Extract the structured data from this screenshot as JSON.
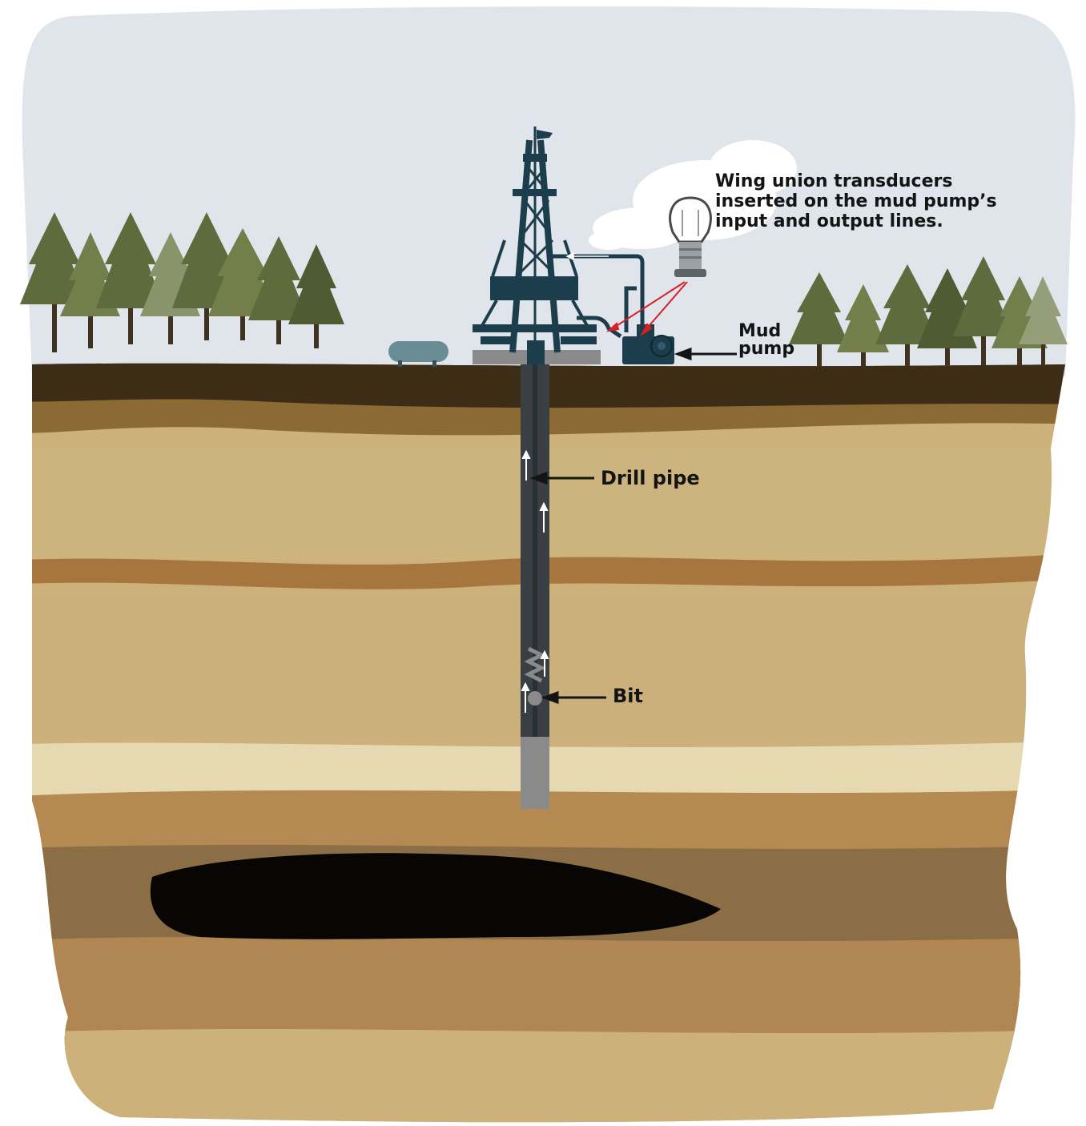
{
  "labels": {
    "transducer_line1": "Wing union transducers",
    "transducer_line2": "inserted on the mud pump’s",
    "transducer_line3": "input and output lines.",
    "mud_line1": "Mud",
    "mud_line2": "pump",
    "drill_pipe": "Drill pipe",
    "bit": "Bit"
  },
  "colors": {
    "sky": "#dfe5ea",
    "rig": "#1c3e4c",
    "pump": "#1c3e4c",
    "trees": "#5e6b3c",
    "topsoil": "#3e2d16",
    "sand": "#ccb27a",
    "oil_pocket": "#070605",
    "sensor_lead": "#d81f26"
  }
}
